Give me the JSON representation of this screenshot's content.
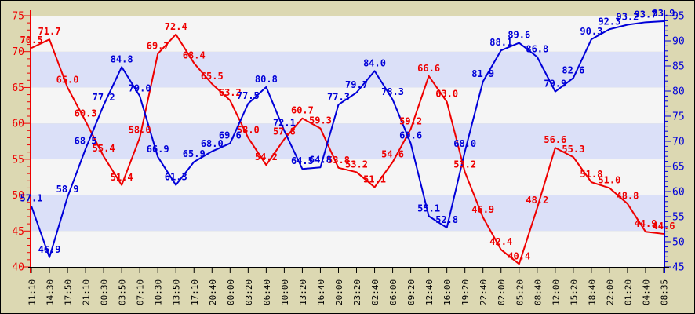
{
  "chart_data": {
    "type": "line",
    "title": "",
    "legend": "none",
    "grid": "horizontal-bands",
    "background": "#dcd8b2",
    "band_colors": [
      "#f5f5f5",
      "#dbe0f8"
    ],
    "x_labels": [
      "11:10",
      "14:30",
      "17:50",
      "21:10",
      "00:30",
      "03:50",
      "07:10",
      "10:30",
      "13:50",
      "17:10",
      "20:40",
      "00:00",
      "03:20",
      "06:40",
      "10:00",
      "13:20",
      "16:40",
      "20:00",
      "23:20",
      "02:40",
      "06:00",
      "09:20",
      "12:40",
      "16:00",
      "19:20",
      "22:40",
      "02:00",
      "05:20",
      "08:40",
      "12:00",
      "15:20",
      "18:40",
      "22:00",
      "01:20",
      "04:40",
      "08:35"
    ],
    "left_axis": {
      "min": 40,
      "max": 75,
      "major_step": 5,
      "minor_step": 1,
      "color": "#ee0000",
      "tick_labels": [
        "40",
        "45",
        "50",
        "55",
        "60",
        "65",
        "70",
        "75"
      ]
    },
    "right_axis": {
      "min": 45,
      "max": 95,
      "major_step": 5,
      "minor_step": 1,
      "color": "#0000d8",
      "tick_labels": [
        "45",
        "50",
        "55",
        "60",
        "65",
        "70",
        "75",
        "80",
        "85",
        "90",
        "95"
      ]
    },
    "series": [
      {
        "name": "red-series",
        "axis": "left",
        "color": "#ee0000",
        "values": [
          70.5,
          71.7,
          65.0,
          60.3,
          55.4,
          51.4,
          58.0,
          69.7,
          72.4,
          68.4,
          65.5,
          63.2,
          58.0,
          54.2,
          57.8,
          60.7,
          59.3,
          53.8,
          53.2,
          51.1,
          54.6,
          59.2,
          66.6,
          63.0,
          53.2,
          46.9,
          42.4,
          40.4,
          48.2,
          56.6,
          55.3,
          51.8,
          51.0,
          48.8,
          44.9,
          44.6
        ]
      },
      {
        "name": "blue-series",
        "axis": "right",
        "color": "#0000d8",
        "values": [
          57.1,
          46.9,
          58.9,
          68.5,
          77.2,
          84.8,
          79.0,
          66.9,
          61.3,
          65.9,
          68.0,
          69.6,
          77.5,
          80.8,
          72.1,
          64.5,
          64.8,
          77.3,
          79.7,
          84.0,
          78.3,
          69.6,
          55.1,
          52.8,
          68.0,
          81.9,
          88.1,
          89.6,
          86.8,
          79.9,
          82.6,
          90.3,
          92.3,
          93.2,
          93.7,
          93.9
        ]
      }
    ]
  }
}
